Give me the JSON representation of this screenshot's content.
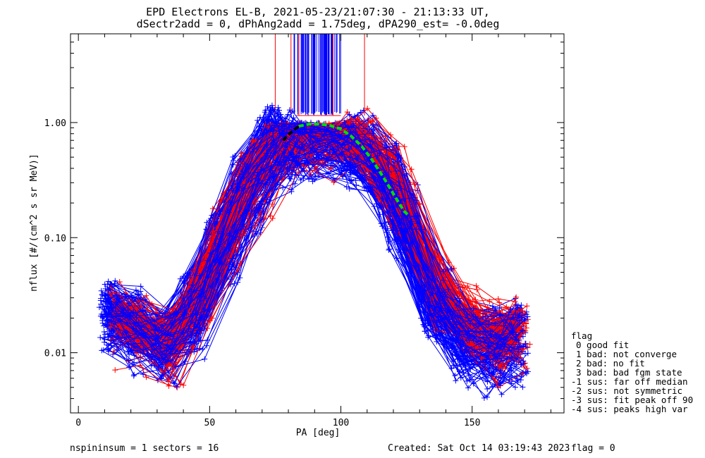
{
  "header": {
    "title_line1": "EPD Electrons EL-B, 2021-05-23/21:07:30 - 21:13:33 UT,",
    "title_line2": "dSectr2add = 0, dPhAng2add = 1.75deg, dPA290_est=  -0.0deg"
  },
  "footer": {
    "left": "nspininsum =  1  sectors = 16",
    "created": "Created: Sat Oct 14 03:19:43 2023",
    "flag": "flag = 0"
  },
  "legend": {
    "title": "flag",
    "items": [
      "0 good fit",
      "1 bad: not converge",
      "2 bad: no fit",
      "3 bad: bad fgm state",
      "-1 sus: far off median",
      "-2 sus: not symmetric",
      "-3 sus: fit peak off 90",
      "-4 sus: peaks high var"
    ]
  },
  "colors": {
    "series_a": "#0000ff",
    "series_b": "#ff0000",
    "fit_upper": "#00dd00",
    "fit_lower": "#000000",
    "axes": "#000000"
  },
  "chart_data": {
    "type": "line",
    "xlabel": "PA [deg]",
    "ylabel": "nflux [#/(cm^2 s sr MeV)]",
    "xlim": [
      -3,
      185
    ],
    "ylim": [
      0.003,
      5.9
    ],
    "y_scale": "log",
    "x_ticks": [
      0,
      50,
      100,
      150
    ],
    "y_ticks": [
      {
        "value": 1.0,
        "label": "1.00"
      },
      {
        "value": 0.1,
        "label": "0.10"
      },
      {
        "value": 0.01,
        "label": "0.01"
      }
    ],
    "series": [
      {
        "color": "blue",
        "count": 130,
        "note": "individual sector pitch-angle distributions, marker '+'",
        "pa_profile": [
          12,
          21,
          33,
          44,
          55,
          65,
          76,
          80,
          86,
          99,
          107,
          118,
          124,
          136,
          147,
          158,
          167
        ],
        "flux_median": [
          0.022,
          0.018,
          0.012,
          0.024,
          0.09,
          0.28,
          0.72,
          0.8,
          0.76,
          0.78,
          0.6,
          0.32,
          0.14,
          0.028,
          0.014,
          0.012,
          0.014
        ]
      },
      {
        "color": "red",
        "count": 70,
        "note": "individual sector pitch-angle distributions, marker '+'",
        "pa_profile": [
          15,
          24,
          35,
          46,
          57,
          68,
          78,
          86,
          99,
          107,
          118,
          124,
          138,
          150,
          160,
          168
        ],
        "flux_median": [
          0.02,
          0.016,
          0.011,
          0.03,
          0.12,
          0.34,
          0.8,
          0.86,
          0.85,
          0.7,
          0.38,
          0.2,
          0.035,
          0.018,
          0.014,
          0.015
        ]
      },
      {
        "color": "green-dashed",
        "note": "fit curve (upper section)",
        "x": [
          84,
          88,
          92,
          96,
          100,
          104,
          108,
          112,
          116,
          120,
          124,
          126
        ],
        "y": [
          0.93,
          0.97,
          0.97,
          0.94,
          0.88,
          0.76,
          0.62,
          0.47,
          0.34,
          0.24,
          0.17,
          0.155
        ]
      },
      {
        "color": "black-dashed",
        "note": "fit curve (lower section)",
        "x": [
          78,
          80,
          82,
          84
        ],
        "y": [
          0.7,
          0.78,
          0.86,
          0.93
        ]
      }
    ],
    "vertical_spikes": {
      "note": "data exceeding plot top near PA 90",
      "blue_x_range": [
        82,
        100
      ],
      "red_x": [
        75,
        81,
        84,
        97,
        109
      ]
    }
  }
}
